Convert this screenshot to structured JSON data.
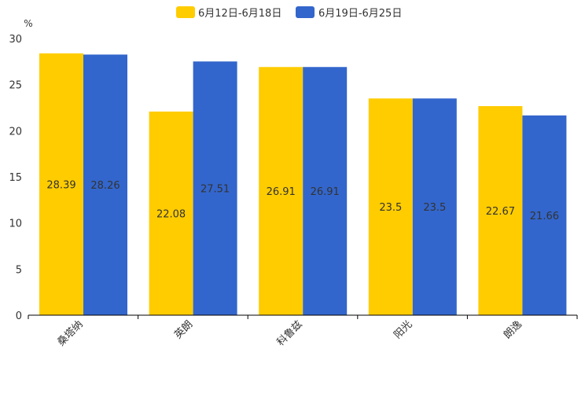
{
  "chart_data": {
    "type": "bar",
    "title": "",
    "xlabel": "",
    "ylabel": "%",
    "ylim": [
      0,
      30
    ],
    "yticks": [
      0,
      5,
      10,
      15,
      20,
      25,
      30
    ],
    "grid": false,
    "legend_position": "top-center",
    "categories": [
      "桑塔纳",
      "英朗",
      "科鲁兹",
      "阳光",
      "朗逸"
    ],
    "series": [
      {
        "name": "6月12日-6月18日",
        "color": "#FFCC00",
        "values": [
          28.39,
          22.08,
          26.91,
          23.5,
          22.67
        ],
        "labels": [
          "28.39",
          "22.08",
          "26.91",
          "23.5",
          "22.67"
        ]
      },
      {
        "name": "6月19日-6月25日",
        "color": "#3366CC",
        "values": [
          28.26,
          27.51,
          26.91,
          23.5,
          21.66
        ],
        "labels": [
          "28.26",
          "27.51",
          "26.91",
          "23.5",
          "21.66"
        ]
      }
    ]
  }
}
